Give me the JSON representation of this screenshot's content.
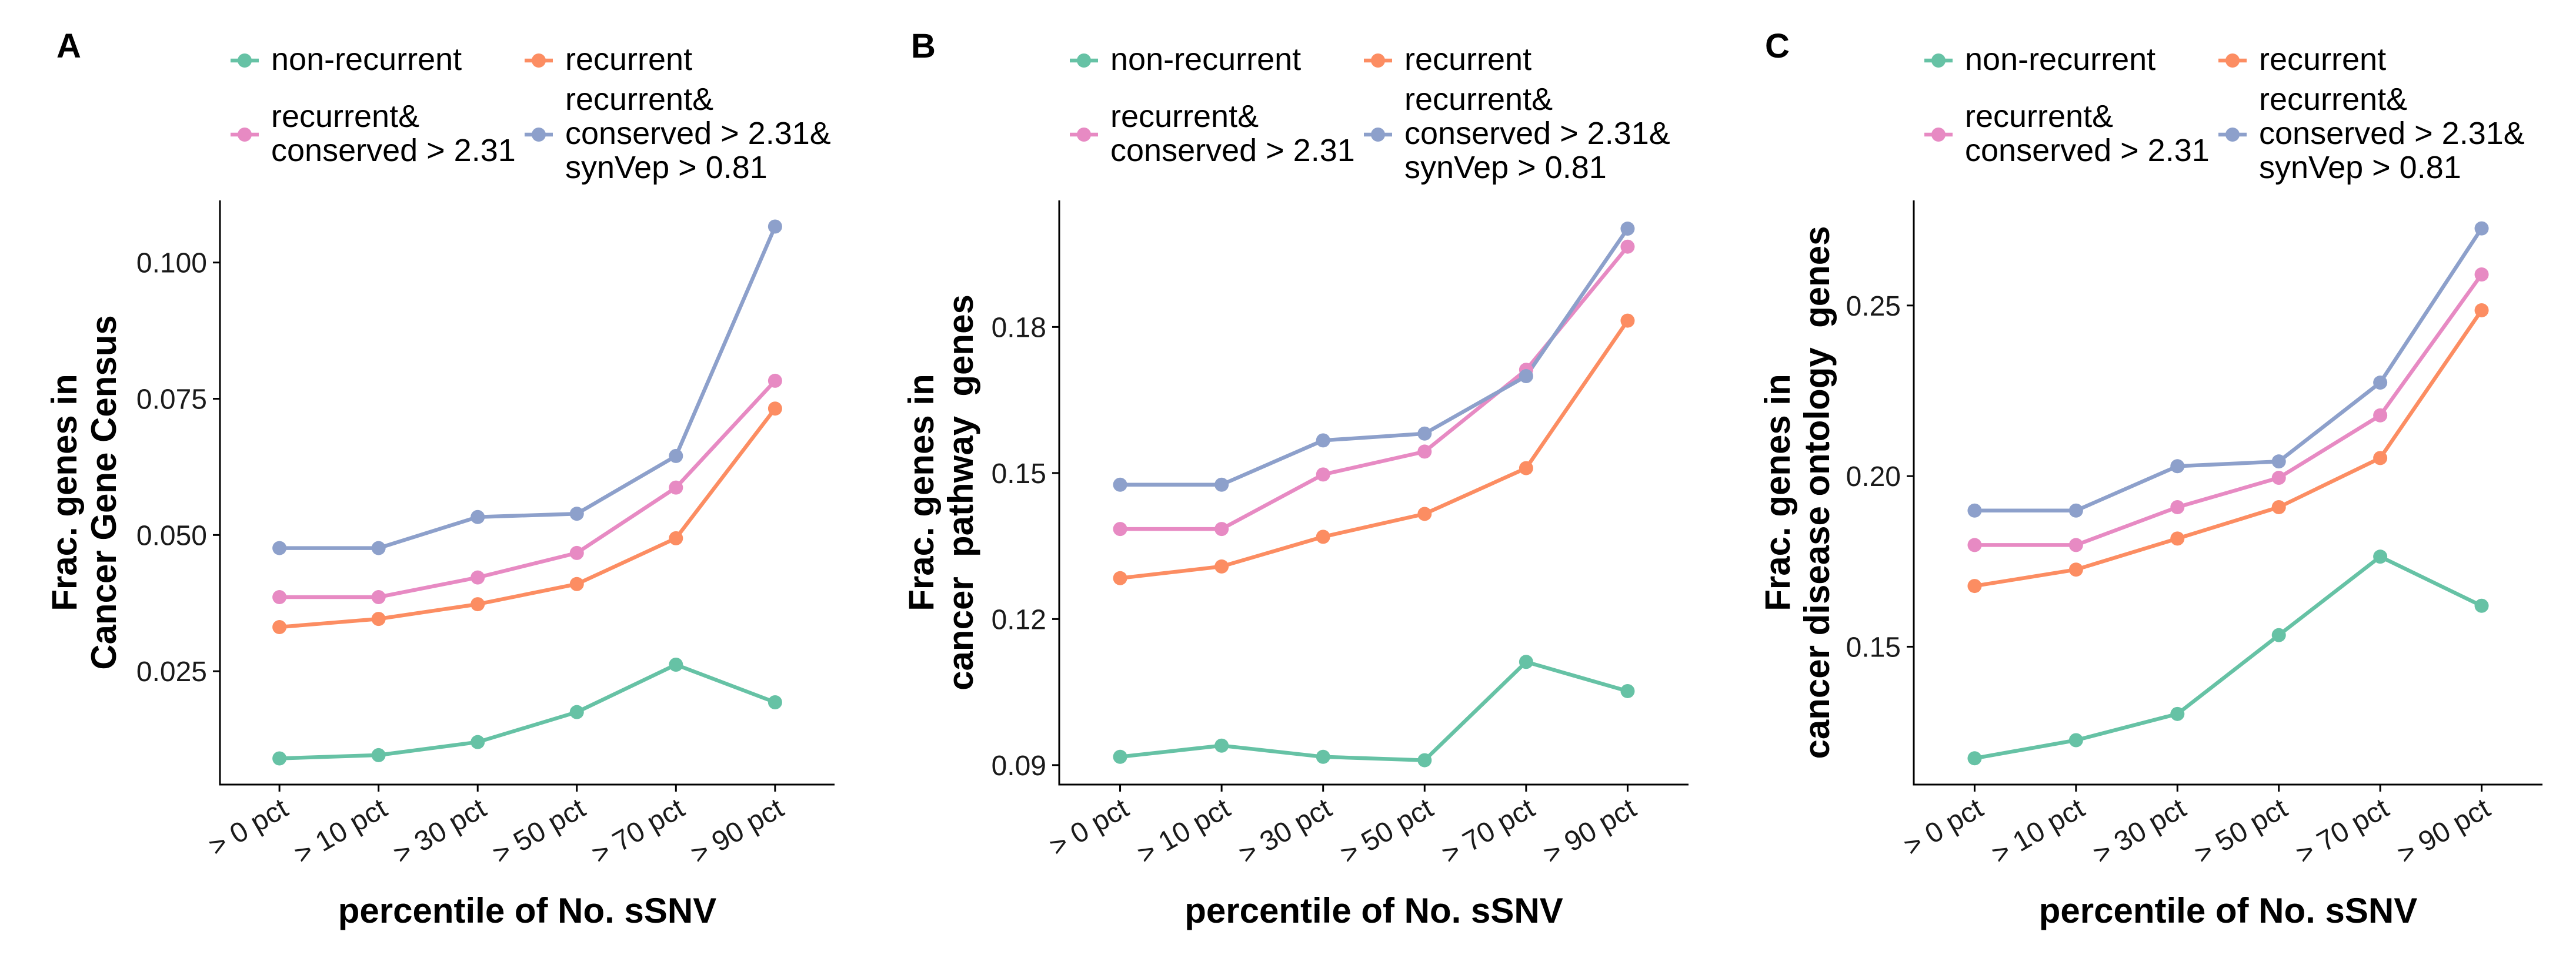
{
  "chart_data": [
    {
      "panel_label": "A",
      "type": "line",
      "xlabel": "percentile of No. sSNV",
      "ylabel": [
        "Frac. genes in",
        "Cancer Gene Census"
      ],
      "categories": [
        "> 0 pct",
        "> 10 pct",
        "> 30 pct",
        "> 50 pct",
        "> 70 pct",
        "> 90 pct"
      ],
      "ylim": [
        0.0042,
        0.1114
      ],
      "yticks": [
        0.025,
        0.05,
        0.075,
        0.1
      ],
      "ytick_labels": [
        "0.025",
        "0.050",
        "0.075",
        "0.100"
      ],
      "grid": false,
      "legend": "top",
      "series": [
        {
          "name": [
            "non-recurrent"
          ],
          "color": "#66C2A5",
          "values": [
            0.009,
            0.0096,
            0.012,
            0.0175,
            0.0262,
            0.0193
          ]
        },
        {
          "name": [
            "recurrent"
          ],
          "color": "#FC8D62",
          "values": [
            0.0331,
            0.0346,
            0.0373,
            0.041,
            0.0494,
            0.0732
          ]
        },
        {
          "name": [
            "recurrent&",
            "conserved > 2.31"
          ],
          "color": "#E78AC3",
          "values": [
            0.0386,
            0.0386,
            0.0422,
            0.0467,
            0.0587,
            0.0783
          ]
        },
        {
          "name": [
            "recurrent&",
            "conserved > 2.31&",
            "synVep > 0.81"
          ],
          "color": "#8DA0CB",
          "values": [
            0.0476,
            0.0476,
            0.0533,
            0.0539,
            0.0645,
            0.1066
          ]
        }
      ]
    },
    {
      "panel_label": "B",
      "type": "line",
      "xlabel": "percentile of No. sSNV",
      "ylabel": [
        "Frac. genes in",
        "cancer  pathway  genes"
      ],
      "categories": [
        "> 0 pct",
        "> 10 pct",
        "> 30 pct",
        "> 50 pct",
        "> 70 pct",
        "> 90 pct"
      ],
      "ylim": [
        0.086,
        0.206
      ],
      "yticks": [
        0.09,
        0.12,
        0.15,
        0.18
      ],
      "ytick_labels": [
        "0.09",
        "0.12",
        "0.15",
        "0.18"
      ],
      "grid": false,
      "legend": "top",
      "series": [
        {
          "name": [
            "non-recurrent"
          ],
          "color": "#66C2A5",
          "values": [
            0.0917,
            0.094,
            0.0917,
            0.091,
            0.1112,
            0.1052
          ]
        },
        {
          "name": [
            "recurrent"
          ],
          "color": "#FC8D62",
          "values": [
            0.1284,
            0.1308,
            0.1369,
            0.1416,
            0.151,
            0.1813
          ]
        },
        {
          "name": [
            "recurrent&",
            "conserved > 2.31"
          ],
          "color": "#E78AC3",
          "values": [
            0.1385,
            0.1385,
            0.1497,
            0.1544,
            0.1712,
            0.1965
          ]
        },
        {
          "name": [
            "recurrent&",
            "conserved > 2.31&",
            "synVep > 0.81"
          ],
          "color": "#8DA0CB",
          "values": [
            0.1476,
            0.1476,
            0.1567,
            0.1581,
            0.1699,
            0.2002
          ]
        }
      ]
    },
    {
      "panel_label": "C",
      "type": "line",
      "xlabel": "percentile of No. sSNV",
      "ylabel": [
        "Frac. genes in",
        "cancer disease ontology  genes"
      ],
      "categories": [
        "> 0 pct",
        "> 10 pct",
        "> 30 pct",
        "> 50 pct",
        "> 70 pct",
        "> 90 pct"
      ],
      "ylim": [
        0.1096,
        0.2808
      ],
      "yticks": [
        0.15,
        0.2,
        0.25
      ],
      "ytick_labels": [
        "0.15",
        "0.20",
        "0.25"
      ],
      "grid": false,
      "legend": "top",
      "series": [
        {
          "name": [
            "non-recurrent"
          ],
          "color": "#66C2A5",
          "values": [
            0.1173,
            0.1226,
            0.1303,
            0.1534,
            0.1764,
            0.162
          ]
        },
        {
          "name": [
            "recurrent"
          ],
          "color": "#FC8D62",
          "values": [
            0.1678,
            0.1726,
            0.1817,
            0.1909,
            0.2053,
            0.2486
          ]
        },
        {
          "name": [
            "recurrent&",
            "conserved > 2.31"
          ],
          "color": "#E78AC3",
          "values": [
            0.1798,
            0.1798,
            0.1909,
            0.1995,
            0.2178,
            0.2591
          ]
        },
        {
          "name": [
            "recurrent&",
            "conserved > 2.31&",
            "synVep > 0.81"
          ],
          "color": "#8DA0CB",
          "values": [
            0.1899,
            0.1899,
            0.2029,
            0.2043,
            0.2274,
            0.2726
          ]
        }
      ]
    }
  ]
}
